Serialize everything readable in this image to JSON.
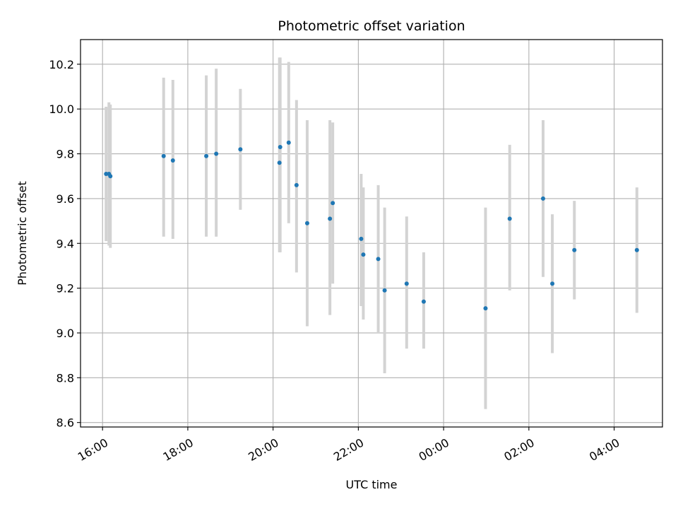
{
  "chart_data": {
    "type": "scatter",
    "title": "Photometric offset variation",
    "xlabel": "UTC time",
    "ylabel": "Photometric offset",
    "x_tick_labels": [
      "16:00",
      "18:00",
      "20:00",
      "22:00",
      "00:00",
      "02:00",
      "04:00"
    ],
    "y_tick_labels": [
      "8.6",
      "8.8",
      "9.0",
      "9.2",
      "9.4",
      "9.6",
      "9.8",
      "10.0",
      "10.2"
    ],
    "xlim": [
      "15:29",
      "05:08"
    ],
    "ylim": [
      8.58,
      10.31
    ],
    "grid": true,
    "points": [
      {
        "time": "16:05",
        "value": 9.71,
        "low": 9.41,
        "high": 10.01
      },
      {
        "time": "16:09",
        "value": 9.71,
        "low": 9.39,
        "high": 10.03
      },
      {
        "time": "16:11",
        "value": 9.7,
        "low": 9.38,
        "high": 10.02
      },
      {
        "time": "17:26",
        "value": 9.79,
        "low": 9.43,
        "high": 10.14
      },
      {
        "time": "17:39",
        "value": 9.77,
        "low": 9.42,
        "high": 10.13
      },
      {
        "time": "18:26",
        "value": 9.79,
        "low": 9.43,
        "high": 10.15
      },
      {
        "time": "18:40",
        "value": 9.8,
        "low": 9.43,
        "high": 10.18
      },
      {
        "time": "19:14",
        "value": 9.82,
        "low": 9.55,
        "high": 10.09
      },
      {
        "time": "20:09",
        "value": 9.76,
        "low": 9.36,
        "high": 10.23
      },
      {
        "time": "20:10",
        "value": 9.83,
        "low": 9.36,
        "high": 10.23
      },
      {
        "time": "20:22",
        "value": 9.85,
        "low": 9.49,
        "high": 10.21
      },
      {
        "time": "20:33",
        "value": 9.66,
        "low": 9.27,
        "high": 10.04
      },
      {
        "time": "20:48",
        "value": 9.49,
        "low": 9.03,
        "high": 9.95
      },
      {
        "time": "21:20",
        "value": 9.51,
        "low": 9.08,
        "high": 9.95
      },
      {
        "time": "21:24",
        "value": 9.58,
        "low": 9.22,
        "high": 9.94
      },
      {
        "time": "22:04",
        "value": 9.42,
        "low": 9.12,
        "high": 9.71
      },
      {
        "time": "22:07",
        "value": 9.35,
        "low": 9.06,
        "high": 9.65
      },
      {
        "time": "22:28",
        "value": 9.33,
        "low": 9.0,
        "high": 9.66
      },
      {
        "time": "22:37",
        "value": 9.19,
        "low": 8.82,
        "high": 9.56
      },
      {
        "time": "23:08",
        "value": 9.22,
        "low": 8.93,
        "high": 9.52
      },
      {
        "time": "23:32",
        "value": 9.14,
        "low": 8.93,
        "high": 9.36
      },
      {
        "time": "00:59",
        "value": 9.11,
        "low": 8.66,
        "high": 9.56
      },
      {
        "time": "01:33",
        "value": 9.51,
        "low": 9.19,
        "high": 9.84
      },
      {
        "time": "02:20",
        "value": 9.6,
        "low": 9.25,
        "high": 9.95
      },
      {
        "time": "02:33",
        "value": 9.22,
        "low": 8.91,
        "high": 9.53
      },
      {
        "time": "03:04",
        "value": 9.37,
        "low": 9.15,
        "high": 9.59
      },
      {
        "time": "04:32",
        "value": 9.37,
        "low": 9.09,
        "high": 9.65
      }
    ],
    "colors": {
      "points": "#1f77b4",
      "errorbars": "#d3d3d3",
      "grid": "#b0b0b0",
      "axes": "#000000"
    }
  }
}
